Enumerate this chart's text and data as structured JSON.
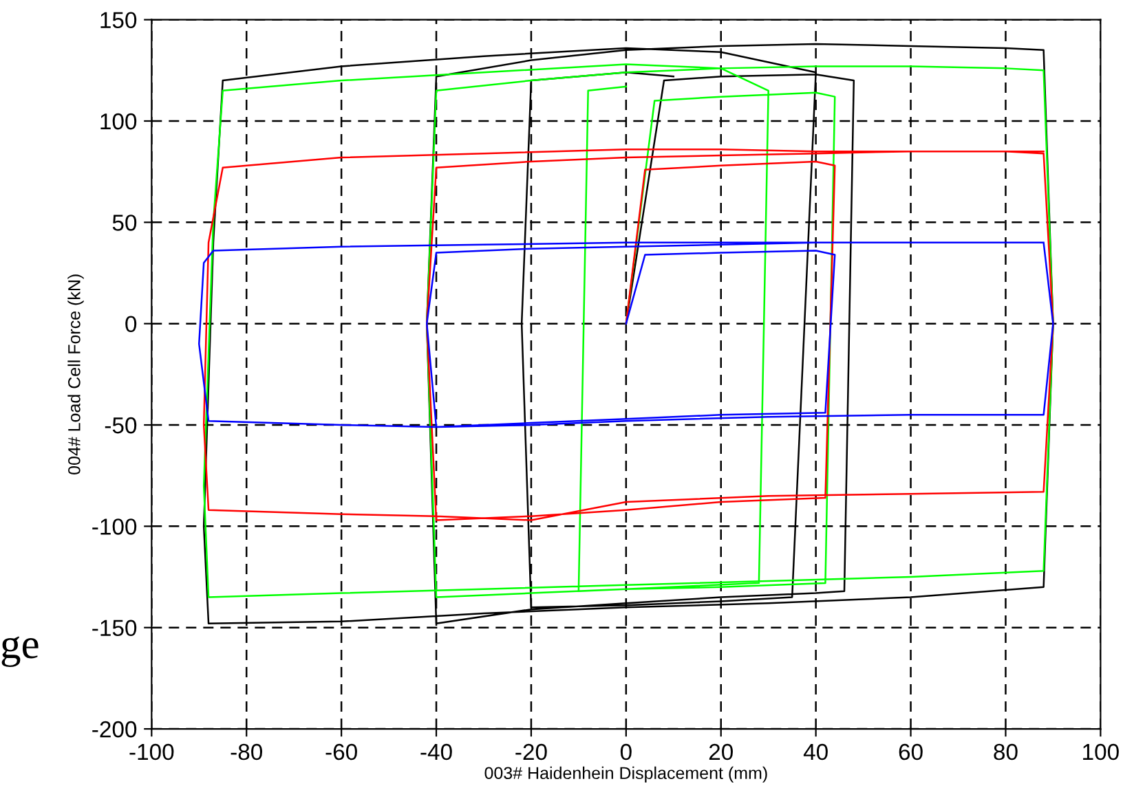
{
  "chart_data": {
    "type": "line",
    "xlabel": "003# Haidenhein Displacement (mm)",
    "ylabel": "004# Load Cell Force (kN)",
    "xlim": [
      -100,
      100
    ],
    "ylim": [
      -200,
      150
    ],
    "xticks": [
      -100,
      -80,
      -60,
      -40,
      -20,
      0,
      20,
      40,
      60,
      80,
      100
    ],
    "yticks": [
      -200,
      -150,
      -100,
      -50,
      0,
      50,
      100,
      150
    ],
    "grid": true,
    "line_style": "solid",
    "marker": "none",
    "annotations": [
      "ge"
    ],
    "series": [
      {
        "color": "#000000",
        "x": [
          0,
          4,
          8,
          20,
          40,
          48,
          46,
          40,
          20,
          0,
          -20,
          -40,
          -42,
          -40,
          -20,
          0,
          20,
          40,
          60,
          80,
          88,
          90,
          88,
          60,
          30,
          0,
          -30,
          -60,
          -88,
          -89,
          -87,
          -85,
          -60,
          -30,
          0,
          20,
          40,
          35,
          20,
          0,
          -20,
          -22,
          -20,
          0,
          10
        ],
        "values": [
          0,
          60,
          120,
          122,
          123,
          120,
          -132,
          -133,
          -135,
          -138,
          -141,
          -148,
          0,
          122,
          130,
          135,
          137,
          138,
          137,
          136,
          135,
          0,
          -130,
          -135,
          -138,
          -140,
          -143,
          -147,
          -148,
          -100,
          40,
          120,
          127,
          132,
          136,
          134,
          124,
          -135,
          -137,
          -139,
          -140,
          0,
          120,
          124,
          122
        ]
      },
      {
        "color": "#00ff00",
        "x": [
          0,
          6,
          20,
          40,
          44,
          42,
          20,
          0,
          -20,
          -40,
          -42,
          -40,
          -20,
          0,
          20,
          40,
          60,
          80,
          88,
          90,
          88,
          60,
          30,
          0,
          -30,
          -60,
          -88,
          -89,
          -87,
          -85,
          -60,
          -30,
          0,
          20,
          30,
          28,
          0,
          -10,
          -8,
          0
        ],
        "values": [
          0,
          110,
          112,
          114,
          112,
          -128,
          -130,
          -131,
          -133,
          -135,
          0,
          115,
          120,
          124,
          126,
          127,
          127,
          126,
          125,
          0,
          -122,
          -125,
          -127,
          -129,
          -131,
          -133,
          -135,
          -80,
          50,
          115,
          120,
          124,
          128,
          126,
          115,
          -128,
          -131,
          -132,
          115,
          117
        ]
      },
      {
        "color": "#ff0000",
        "x": [
          0,
          4,
          20,
          40,
          44,
          42,
          20,
          0,
          -20,
          -40,
          -42,
          -40,
          -20,
          0,
          20,
          40,
          60,
          80,
          88,
          90,
          88,
          60,
          30,
          0,
          -20,
          -40,
          -60,
          -88,
          -89,
          -88,
          -85,
          -60,
          -30,
          0,
          20,
          40,
          88
        ],
        "values": [
          0,
          76,
          78,
          80,
          78,
          -86,
          -88,
          -92,
          -95,
          -97,
          0,
          77,
          80,
          82,
          83,
          84,
          85,
          85,
          84,
          0,
          -83,
          -84,
          -85,
          -88,
          -97,
          -95,
          -94,
          -92,
          -50,
          40,
          77,
          82,
          84,
          86,
          86,
          85,
          85
        ]
      },
      {
        "color": "#0000ff",
        "x": [
          0,
          4,
          20,
          40,
          44,
          42,
          20,
          0,
          -20,
          -40,
          -42,
          -40,
          -20,
          0,
          20,
          40,
          60,
          80,
          88,
          90,
          88,
          60,
          30,
          0,
          -20,
          -40,
          -60,
          -88,
          -90,
          -89,
          -87,
          -60,
          -30,
          0,
          40,
          88
        ],
        "values": [
          0,
          34,
          35,
          36,
          34,
          -44,
          -45,
          -47,
          -49,
          -51,
          0,
          35,
          37,
          38,
          39,
          40,
          40,
          40,
          40,
          0,
          -45,
          -45,
          -46,
          -48,
          -50,
          -51,
          -50,
          -48,
          -10,
          30,
          36,
          38,
          39,
          40,
          40,
          40
        ]
      }
    ]
  }
}
